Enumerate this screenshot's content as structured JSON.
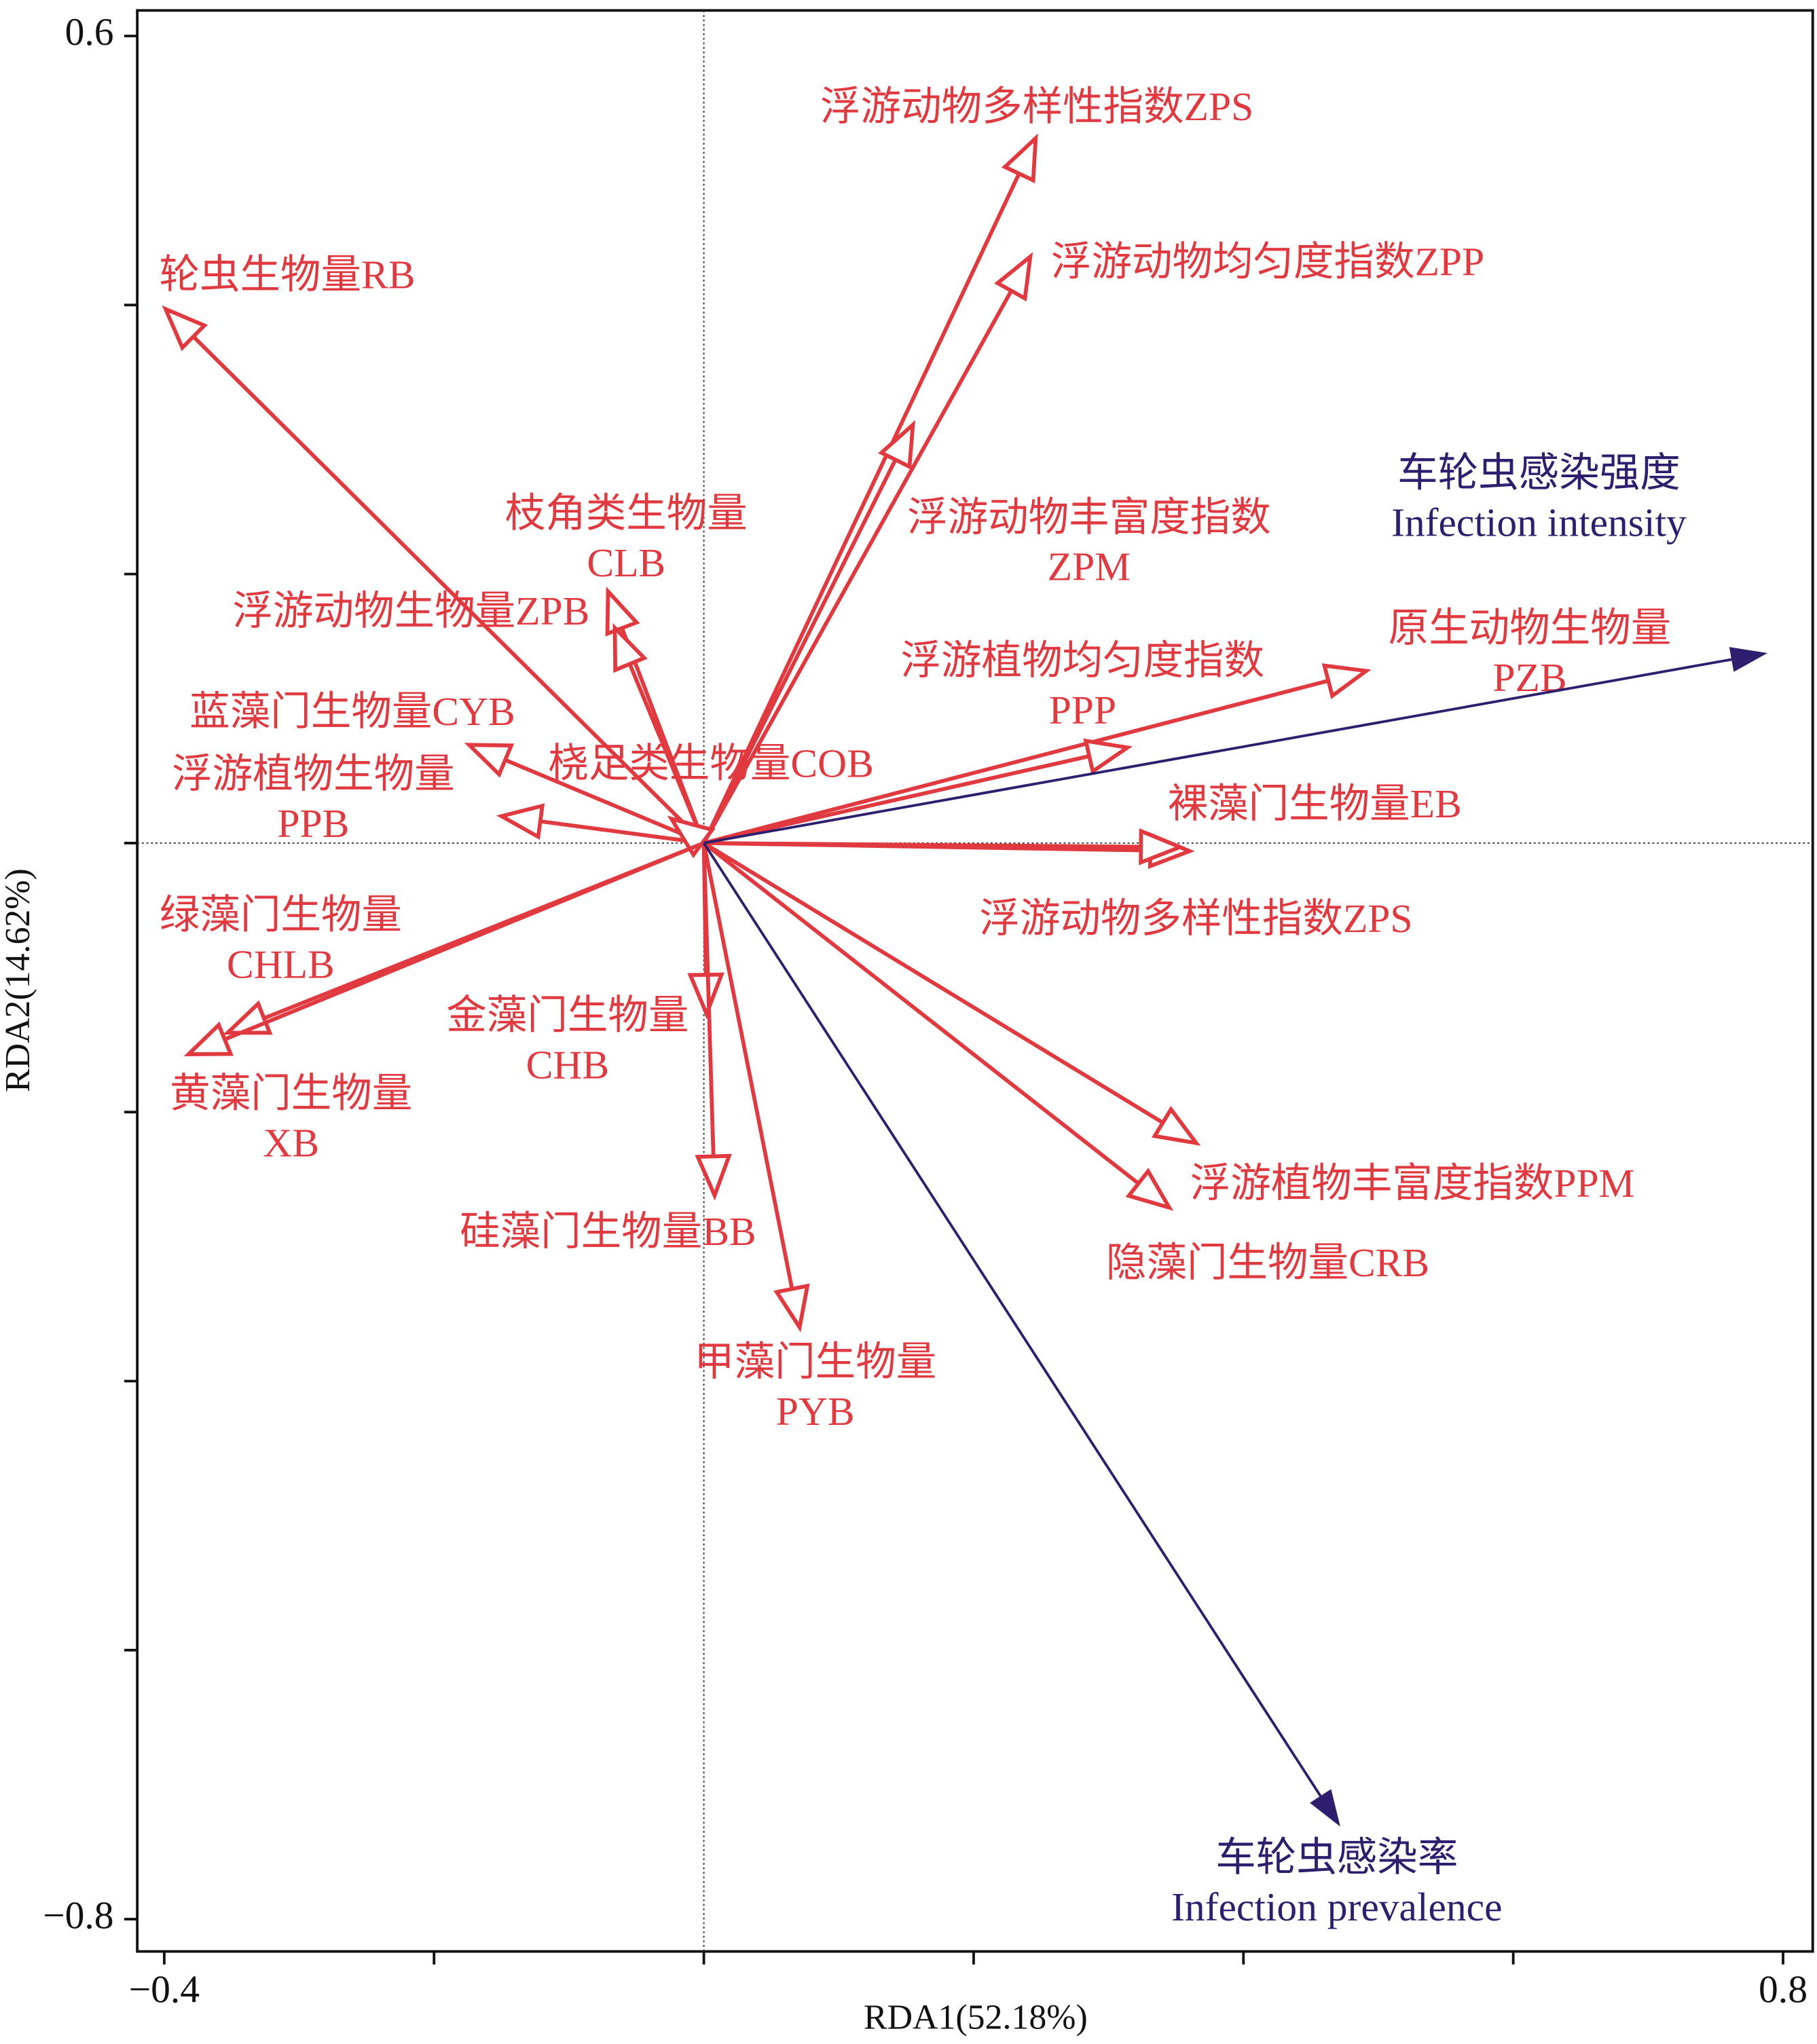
{
  "chart_data": {
    "type": "biplot",
    "xlabel": "RDA1(52.18%)",
    "ylabel": "RDA2(14.62%)",
    "xlim": [
      -0.42,
      0.822
    ],
    "ylim": [
      -0.824,
      0.619
    ],
    "xticks": [
      {
        "value": -0.4,
        "label": "−0.4"
      },
      {
        "value": 0.8,
        "label": "0.8"
      }
    ],
    "xminorticks": [
      -0.2,
      0,
      0.2,
      0.4,
      0.6
    ],
    "yticks": [
      0.6,
      {
        "value": -0.8,
        "label": "−0.8"
      }
    ],
    "yminorticks": [
      0.4,
      0.2,
      0,
      -0.2,
      -0.4,
      -0.6
    ],
    "explanatory": {
      "color": "#e0393f",
      "head": "open",
      "arrows": [
        {
          "label": [
            "浮游动物多样性指数ZPS"
          ],
          "x": 0.246,
          "y": 0.524
        },
        {
          "label": [
            "浮游动物均匀度指数ZPP"
          ],
          "x": 0.242,
          "y": 0.436
        },
        {
          "label": [
            "浮游动物丰富度指数",
            "ZPM"
          ],
          "x": 0.155,
          "y": 0.311
        },
        {
          "label": [
            "轮虫生物量RB"
          ],
          "x": -0.399,
          "y": 0.397
        },
        {
          "label": [
            "枝角类生物量",
            "CLB"
          ],
          "x": -0.071,
          "y": 0.187
        },
        {
          "label": [
            "浮游动物生物量ZPB"
          ],
          "x": -0.066,
          "y": 0.16
        },
        {
          "label": [
            "蓝藻门生物量CYB"
          ],
          "x": -0.174,
          "y": 0.073
        },
        {
          "label": [
            "浮游植物生物量",
            "PPB"
          ],
          "x": -0.15,
          "y": 0.02
        },
        {
          "label": [
            "桡足类生物量COB"
          ],
          "x": -0.024,
          "y": 0.018
        },
        {
          "label": [
            "原生动物生物量",
            "PZB"
          ],
          "x": 0.491,
          "y": 0.128
        },
        {
          "label": [
            "浮游植物均匀度指数",
            "PPP"
          ],
          "x": 0.314,
          "y": 0.071
        },
        {
          "label": [
            "裸藻门生物量EB"
          ],
          "x": 0.36,
          "y": -0.006
        },
        {
          "label": [
            "浮游动物多样性指数ZPS"
          ],
          "x": 0.353,
          "y": -0.003
        },
        {
          "label": [
            "绿藻门生物量",
            "CHLB"
          ],
          "x": -0.353,
          "y": -0.141
        },
        {
          "label": [
            "黄藻门生物量",
            "XB"
          ],
          "x": -0.382,
          "y": -0.157
        },
        {
          "label": [
            "金藻门生物量",
            "CHB"
          ],
          "x": 0.002,
          "y": -0.127
        },
        {
          "label": [
            "硅藻门生物量BB"
          ],
          "x": 0.008,
          "y": -0.262
        },
        {
          "label": [
            "甲藻门生物量",
            "PYB"
          ],
          "x": 0.071,
          "y": -0.36
        },
        {
          "label": [
            "浮游植物丰富度指数PPM"
          ],
          "x": 0.365,
          "y": -0.223
        },
        {
          "label": [
            "隐藻门生物量CRB"
          ],
          "x": 0.345,
          "y": -0.271
        }
      ]
    },
    "response": {
      "color": "#2e1f6e",
      "head": "filled",
      "arrows": [
        {
          "label": [
            "车轮虫感染强度",
            "Infection intensity"
          ],
          "x": 0.787,
          "y": 0.141
        },
        {
          "label": [
            "车轮虫感染率",
            "Infection prevalence"
          ],
          "x": 0.471,
          "y": -0.73
        }
      ]
    }
  }
}
